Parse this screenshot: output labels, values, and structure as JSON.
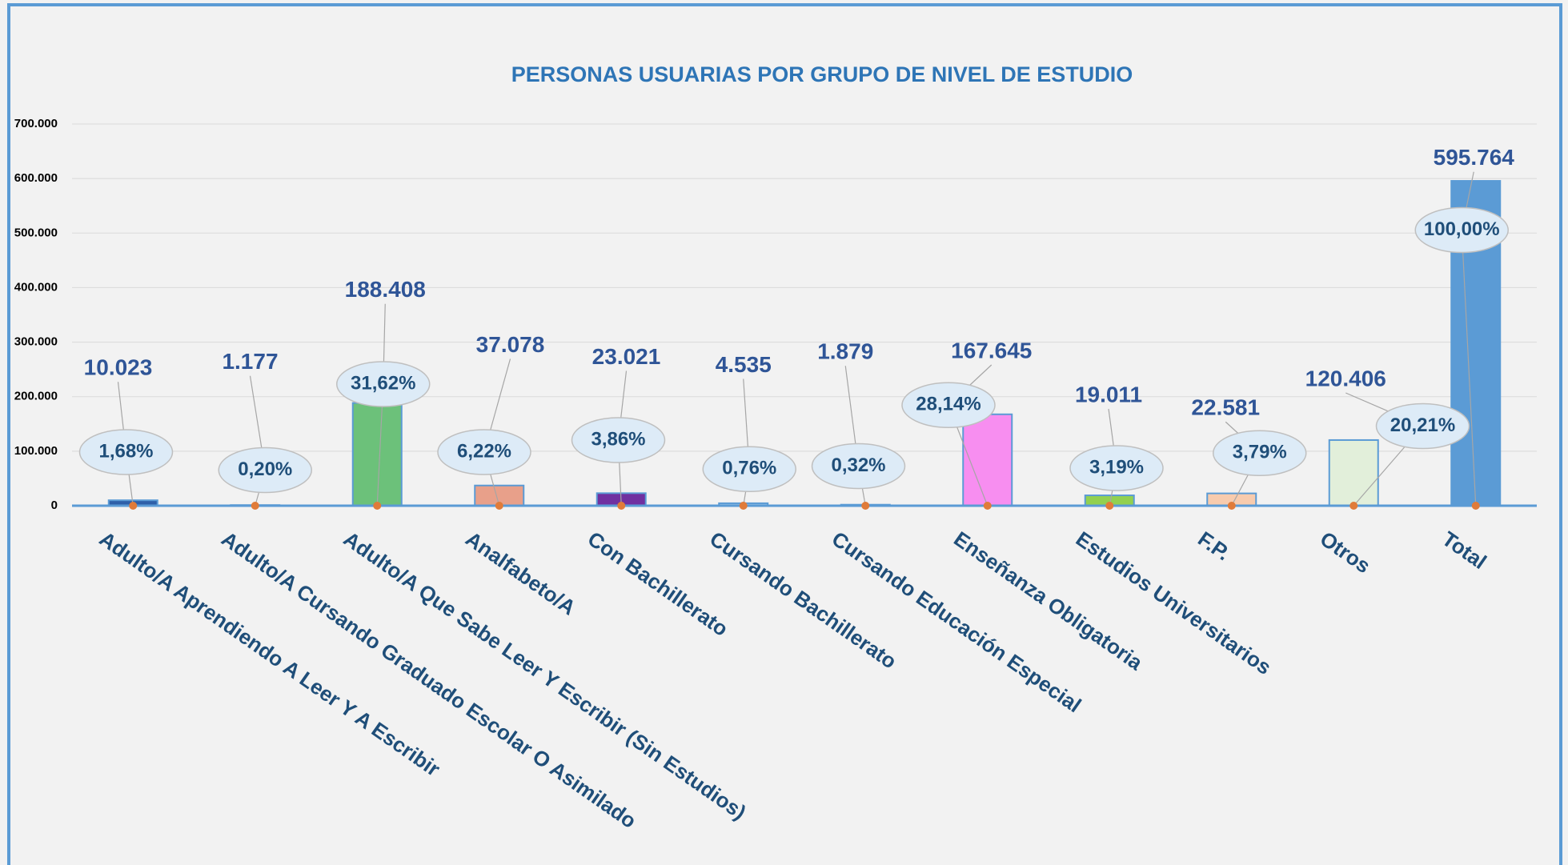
{
  "chart_data": {
    "type": "bar",
    "title": "PERSONAS USUARIAS POR GRUPO DE NIVEL DE ESTUDIO",
    "categories": [
      "Adulto/A Aprendiendo A Leer Y A Escribir",
      "Adulto/A Cursando Graduado Escolar O Asimilado",
      "Adulto/A Que Sabe Leer Y Escribir (Sin Estudios)",
      "Analfabeto/A",
      "Con Bachillerato",
      "Cursando Bachillerato",
      "Cursando Educación Especial",
      "Enseñanza Obligatoria",
      "Estudios Universitarios",
      "F.P.",
      "Otros",
      "Total"
    ],
    "values": [
      10023,
      1177,
      188408,
      37078,
      23021,
      4535,
      1879,
      167645,
      19011,
      22581,
      120406,
      595764
    ],
    "value_labels": [
      "10.023",
      "1.177",
      "188.408",
      "37.078",
      "23.021",
      "4.535",
      "1.879",
      "167.645",
      "19.011",
      "22.581",
      "120.406",
      "595.764"
    ],
    "shares": [
      1.68,
      0.2,
      31.62,
      6.22,
      3.86,
      0.76,
      0.32,
      28.14,
      3.19,
      3.79,
      20.21,
      100.0
    ],
    "share_labels": [
      "1,68%",
      "0,20%",
      "31,62%",
      "6,22%",
      "3,86%",
      "0,76%",
      "0,32%",
      "28,14%",
      "3,19%",
      "3,79%",
      "20,21%",
      "100,00%"
    ],
    "colors": [
      "#2e5fa8",
      "#9dc3e6",
      "#6cc17a",
      "#e8a08a",
      "#7030a0",
      "#9dc3e6",
      "#7030a0",
      "#f78ef0",
      "#92d050",
      "#f8cbad",
      "#e2efda",
      "#5b9bd5"
    ],
    "ylim": [
      0,
      700000
    ],
    "yticks": [
      0,
      {
        "value": 100000,
        "label": "100.000"
      },
      {
        "value": 200000,
        "label": "200.000"
      },
      {
        "value": 300000,
        "label": "300.000"
      },
      {
        "value": 400000,
        "label": "400.000"
      },
      {
        "value": 500000,
        "label": "500.000"
      },
      {
        "value": 600000,
        "label": "600.000"
      },
      {
        "value": 700000,
        "label": "700.000"
      }
    ],
    "grid": true
  }
}
